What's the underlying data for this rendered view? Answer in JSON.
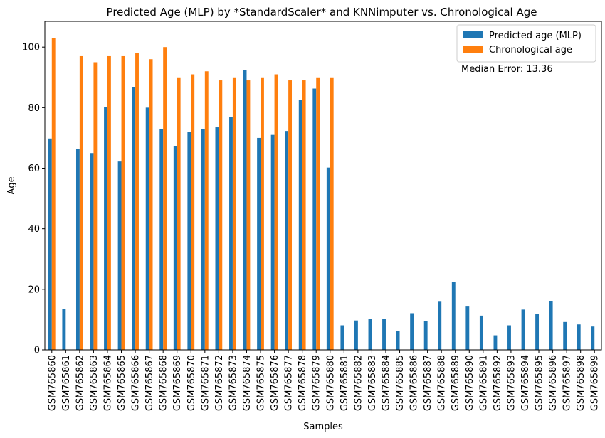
{
  "chart_data": {
    "type": "bar",
    "title": "Predicted Age (MLP) by *StandardScaler* and KNNimputer vs. Chronological Age",
    "xlabel": "Samples",
    "ylabel": "Age",
    "ylim": [
      0,
      108.5
    ],
    "yticks": [
      0,
      20,
      40,
      60,
      80,
      100
    ],
    "legend_position": "top-right",
    "annotation": "Median Error: 13.36",
    "categories": [
      "GSM765860",
      "GSM765861",
      "GSM765862",
      "GSM765863",
      "GSM765864",
      "GSM765865",
      "GSM765866",
      "GSM765867",
      "GSM765868",
      "GSM765869",
      "GSM765870",
      "GSM765871",
      "GSM765872",
      "GSM765873",
      "GSM765874",
      "GSM765875",
      "GSM765876",
      "GSM765877",
      "GSM765878",
      "GSM765879",
      "GSM765880",
      "GSM765881",
      "GSM765882",
      "GSM765883",
      "GSM765884",
      "GSM765885",
      "GSM765886",
      "GSM765887",
      "GSM765888",
      "GSM765889",
      "GSM765890",
      "GSM765891",
      "GSM765892",
      "GSM765893",
      "GSM765894",
      "GSM765895",
      "GSM765896",
      "GSM765897",
      "GSM765898",
      "GSM765899"
    ],
    "series": [
      {
        "name": "Predicted age (MLP)",
        "color": "#1f77b4",
        "values": [
          69.8,
          13.5,
          66.3,
          65.0,
          80.2,
          62.2,
          86.7,
          80.0,
          72.9,
          67.4,
          72.0,
          73.0,
          73.5,
          76.8,
          92.5,
          70.0,
          71.0,
          72.3,
          82.6,
          86.3,
          60.2,
          8.1,
          9.7,
          10.1,
          10.1,
          6.2,
          12.1,
          9.6,
          15.9,
          22.4,
          14.3,
          11.3,
          4.8,
          8.1,
          13.3,
          11.8,
          16.1,
          9.2,
          8.4,
          7.7
        ]
      },
      {
        "name": "Chronological age",
        "color": "#ff7f0e",
        "values": [
          103,
          null,
          97,
          95,
          97,
          97,
          98,
          96,
          100,
          90,
          91,
          92,
          89,
          90,
          89,
          90,
          91,
          89,
          89,
          90,
          90,
          null,
          null,
          null,
          null,
          null,
          null,
          null,
          null,
          null,
          null,
          null,
          null,
          null,
          null,
          null,
          null,
          null,
          null,
          null
        ]
      }
    ]
  }
}
